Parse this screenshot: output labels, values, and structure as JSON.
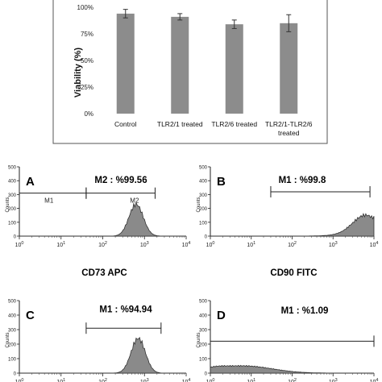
{
  "chart_data": [
    {
      "type": "bar",
      "ylabel": "Viability (%)",
      "categories": [
        "Control",
        "TLR2/1 treated",
        "TLR2/6 treated",
        "TLR2/1-TLR2/6 treated"
      ],
      "category_lines": [
        [
          "Control"
        ],
        [
          "TLR2/1 treated"
        ],
        [
          "TLR2/6 treated"
        ],
        [
          "TLR2/1-TLR2/6",
          "treated"
        ]
      ],
      "values": [
        94,
        91,
        84,
        85
      ],
      "errors": [
        4,
        3,
        4,
        8
      ],
      "ylim": [
        0,
        100
      ],
      "yticks": [
        "0%",
        "25%",
        "50%",
        "75%",
        "100%"
      ],
      "bar_color": "#8c8c8c"
    },
    {
      "type": "area",
      "panel": "A",
      "xlabel": "CD73 APC",
      "ylabel": "Counts",
      "x_scale": "log",
      "xlim": [
        1,
        10000
      ],
      "ylim": [
        0,
        500
      ],
      "gates": [
        {
          "name": "M1",
          "range": [
            1,
            40
          ]
        },
        {
          "name": "M2",
          "range": [
            40,
            1800
          ],
          "label": "M2 : %99.56"
        }
      ],
      "gate_short_labels": [
        "M1",
        "M2"
      ],
      "peak_center_log": 2.8,
      "peak_height": 230
    },
    {
      "type": "area",
      "panel": "B",
      "xlabel": "CD90 FITC",
      "ylabel": "Counts",
      "x_scale": "log",
      "xlim": [
        1,
        10000
      ],
      "ylim": [
        0,
        500
      ],
      "gates": [
        {
          "name": "M1",
          "range": [
            30,
            8000
          ],
          "label": "M1 : %99.8"
        }
      ],
      "peak_center_log": 3.8,
      "peak_height": 150
    },
    {
      "type": "area",
      "panel": "C",
      "xlabel": "",
      "ylabel": "Counts",
      "x_scale": "log",
      "xlim": [
        1,
        10000
      ],
      "ylim": [
        0,
        500
      ],
      "gates": [
        {
          "name": "M1",
          "range": [
            40,
            2500
          ],
          "label": "M1 : %94.94"
        }
      ],
      "peak_center_log": 2.85,
      "peak_height": 240
    },
    {
      "type": "area",
      "panel": "D",
      "xlabel": "",
      "ylabel": "Counts",
      "x_scale": "log",
      "xlim": [
        1,
        10000
      ],
      "ylim": [
        0,
        500
      ],
      "gates": [
        {
          "name": "M1",
          "range": [
            1,
            10000
          ],
          "label": "M1 : %1.09"
        }
      ],
      "peak_center_log": 0.8,
      "peak_height": 50
    }
  ],
  "flow_axis": {
    "yticks": [
      "0",
      "100",
      "200",
      "300",
      "400",
      "500"
    ],
    "xticks_base": "10",
    "xticks_exp": [
      "0",
      "1",
      "2",
      "3",
      "4"
    ],
    "counts_label": "Counts"
  }
}
